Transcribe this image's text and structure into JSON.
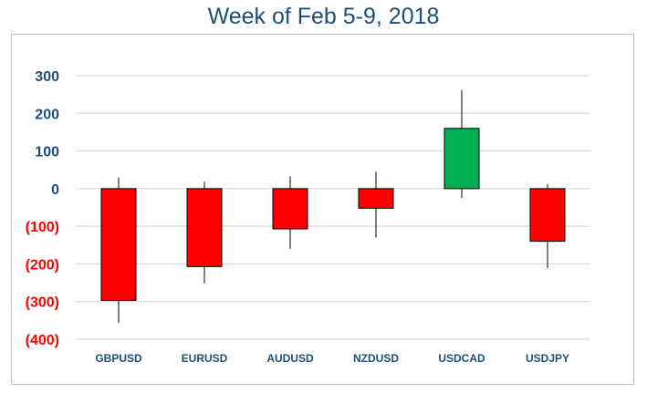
{
  "chart_data": {
    "type": "candlestick",
    "title": "Week of Feb 5-9, 2018",
    "xlabel": "",
    "ylabel": "",
    "ylim": [
      -400,
      300
    ],
    "yticks": [
      {
        "value": 300,
        "label": "300"
      },
      {
        "value": 200,
        "label": "200"
      },
      {
        "value": 100,
        "label": "100"
      },
      {
        "value": 0,
        "label": "0"
      },
      {
        "value": -100,
        "label": "(100)"
      },
      {
        "value": -200,
        "label": "(200)"
      },
      {
        "value": -300,
        "label": "(300)"
      },
      {
        "value": -400,
        "label": "(400)"
      }
    ],
    "grid": true,
    "legend": "none",
    "categories": [
      "GBPUSD",
      "EURUSD",
      "AUDUSD",
      "NZDUSD",
      "USDCAD",
      "USDJPY"
    ],
    "candles": [
      {
        "category": "GBPUSD",
        "open": 0,
        "close": -297,
        "high": 30,
        "low": -357
      },
      {
        "category": "EURUSD",
        "open": 0,
        "close": -207,
        "high": 18,
        "low": -252
      },
      {
        "category": "AUDUSD",
        "open": 0,
        "close": -107,
        "high": 33,
        "low": -160
      },
      {
        "category": "NZDUSD",
        "open": 0,
        "close": -52,
        "high": 45,
        "low": -130
      },
      {
        "category": "USDCAD",
        "open": 0,
        "close": 160,
        "high": 262,
        "low": -25
      },
      {
        "category": "USDJPY",
        "open": 0,
        "close": -140,
        "high": 12,
        "low": -212
      }
    ],
    "colors": {
      "down": "#FF0000",
      "up": "#00B050",
      "positive_label": "#1F4E79",
      "negative_label": "#FF0000",
      "gridline": "#D0D0D0",
      "category_label": "#1F4E79",
      "title": "#1F4E79"
    }
  }
}
